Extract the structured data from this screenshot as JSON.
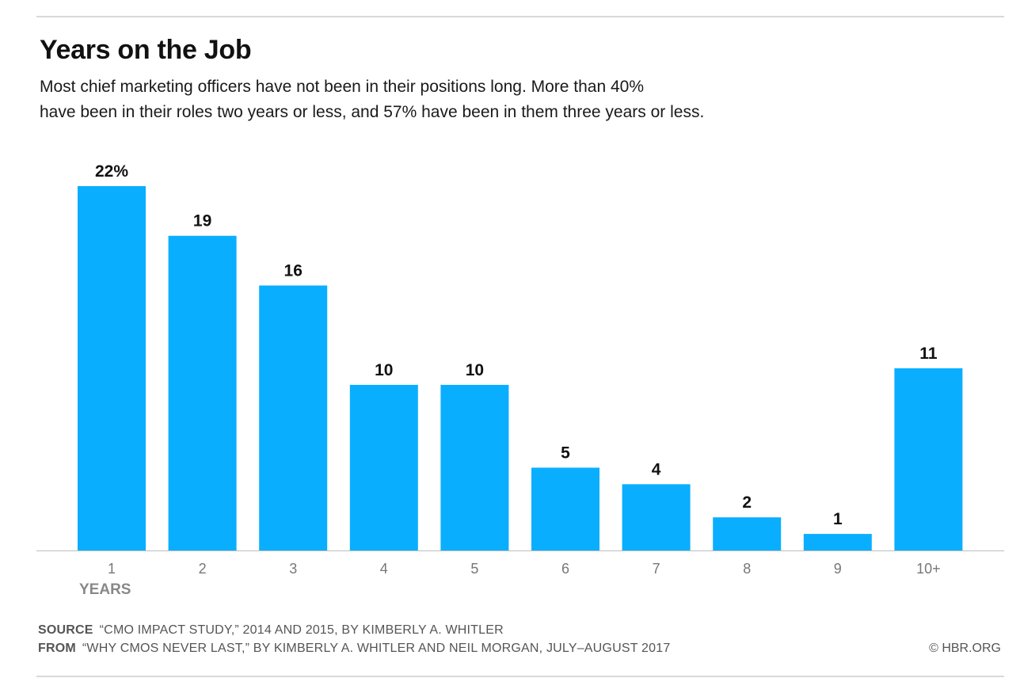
{
  "header": {
    "title": "Years on the Job",
    "subtitle_line1": "Most chief marketing officers have not been in their positions long. More than 40%",
    "subtitle_line2": "have been in their roles two years or less, and 57% have been in them three years or less."
  },
  "chart_data": {
    "type": "bar",
    "categories": [
      "1",
      "2",
      "3",
      "4",
      "5",
      "6",
      "7",
      "8",
      "9",
      "10+"
    ],
    "values": [
      22,
      19,
      16,
      10,
      10,
      5,
      4,
      2,
      1,
      11
    ],
    "data_labels": [
      "22%",
      "19",
      "16",
      "10",
      "10",
      "5",
      "4",
      "2",
      "1",
      "11"
    ],
    "xlabel": "YEARS",
    "ylabel": "",
    "ylim": [
      0,
      22
    ],
    "grid": false,
    "bar_color": "#0aaeff"
  },
  "footer": {
    "source_label": "SOURCE",
    "source_text": "“CMO IMPACT STUDY,” 2014 AND 2015, BY KIMBERLY A. WHITLER",
    "from_label": "FROM",
    "from_text": "“WHY CMOS NEVER LAST,” BY KIMBERLY A. WHITLER AND NEIL MORGAN, JULY–AUGUST 2017",
    "credit": "© HBR.ORG"
  }
}
